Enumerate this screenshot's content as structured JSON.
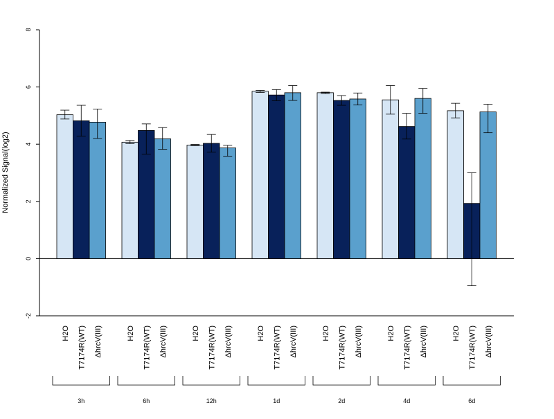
{
  "chart_data": {
    "type": "bar",
    "ylabel": "Normalized Signal(log2)",
    "ylim": [
      -2,
      8
    ],
    "yticks": [
      -2,
      0,
      2,
      4,
      6,
      8
    ],
    "groups": [
      "3h",
      "6h",
      "12h",
      "1d",
      "2d",
      "4d",
      "6d"
    ],
    "series": [
      {
        "name": "H2O",
        "color": "#d6e6f5",
        "values": [
          5.03,
          4.07,
          3.97,
          5.85,
          5.8,
          5.55,
          5.17
        ],
        "error_low": [
          4.88,
          4.02,
          3.95,
          5.81,
          5.77,
          5.05,
          4.92
        ],
        "error_high": [
          5.19,
          4.13,
          3.99,
          5.88,
          5.82,
          6.05,
          5.43
        ]
      },
      {
        "name": "T7174R(WT)",
        "color": "#08215a",
        "values": [
          4.82,
          4.48,
          4.03,
          5.72,
          5.53,
          4.62,
          1.93
        ],
        "error_low": [
          4.28,
          3.65,
          3.72,
          5.52,
          5.36,
          4.18,
          -0.95
        ],
        "error_high": [
          5.36,
          4.71,
          4.34,
          5.91,
          5.7,
          5.08,
          3.0
        ]
      },
      {
        "name": "ΔhrcV(III)",
        "color": "#5aa0cd",
        "values": [
          4.77,
          4.19,
          3.87,
          5.8,
          5.58,
          5.6,
          5.13
        ],
        "error_low": [
          4.2,
          3.82,
          3.58,
          5.53,
          5.37,
          5.08,
          4.4
        ],
        "error_high": [
          5.23,
          4.58,
          3.96,
          6.05,
          5.79,
          5.95,
          5.4
        ]
      }
    ]
  }
}
